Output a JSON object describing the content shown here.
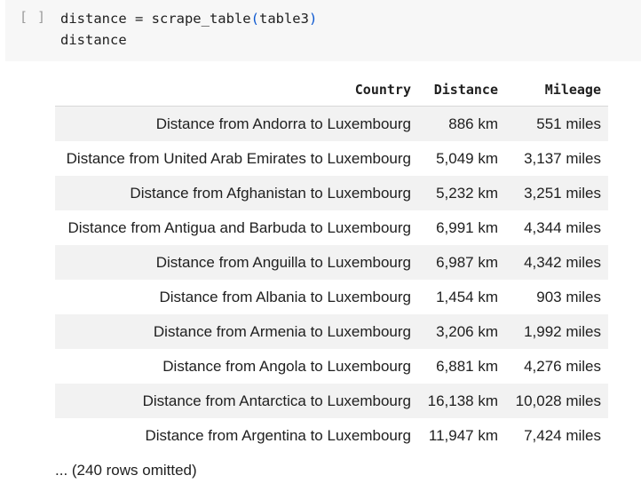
{
  "cell": {
    "run_marker": "[ ]",
    "code_line1_pre": "distance = scrape_table",
    "code_line1_open": "(",
    "code_line1_arg": "table3",
    "code_line1_close": ")",
    "code_line2": "distance"
  },
  "table": {
    "headers": [
      "Country",
      "Distance",
      "Mileage"
    ],
    "rows": [
      [
        "Distance from Andorra to Luxembourg",
        "886 km",
        "551 miles"
      ],
      [
        "Distance from United Arab Emirates to Luxembourg",
        "5,049 km",
        "3,137 miles"
      ],
      [
        "Distance from Afghanistan to Luxembourg",
        "5,232 km",
        "3,251 miles"
      ],
      [
        "Distance from Antigua and Barbuda to Luxembourg",
        "6,991 km",
        "4,344 miles"
      ],
      [
        "Distance from Anguilla to Luxembourg",
        "6,987 km",
        "4,342 miles"
      ],
      [
        "Distance from Albania to Luxembourg",
        "1,454 km",
        "903 miles"
      ],
      [
        "Distance from Armenia to Luxembourg",
        "3,206 km",
        "1,992 miles"
      ],
      [
        "Distance from Angola to Luxembourg",
        "6,881 km",
        "4,276 miles"
      ],
      [
        "Distance from Antarctica to Luxembourg",
        "16,138 km",
        "10,028 miles"
      ],
      [
        "Distance from Argentina to Luxembourg",
        "11,947 km",
        "7,424 miles"
      ]
    ],
    "omitted_note": "... (240 rows omitted)"
  }
}
